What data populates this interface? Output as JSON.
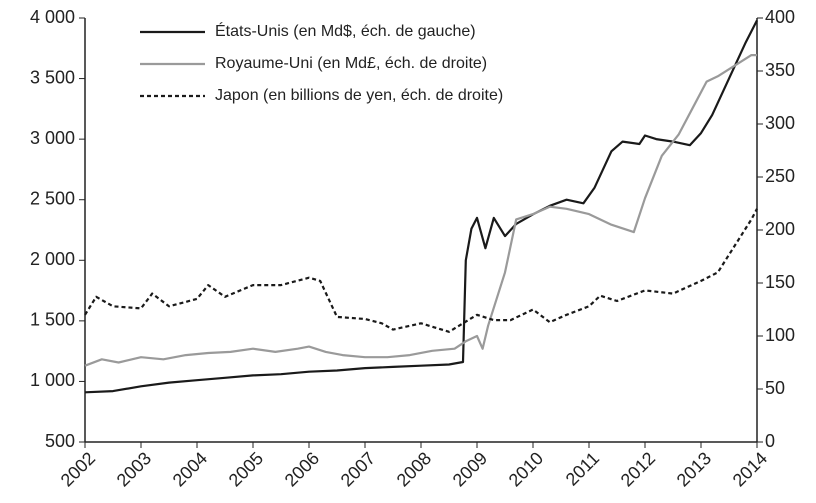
{
  "chart_data": {
    "type": "line",
    "xlim": [
      2002,
      2014
    ],
    "xticks": [
      2002,
      2003,
      2004,
      2005,
      2006,
      2007,
      2008,
      2009,
      2010,
      2011,
      2012,
      2013,
      2014
    ],
    "ylim": [
      500,
      4000
    ],
    "yticks": [
      500,
      {
        "value": 1000,
        "label": "1 000"
      },
      {
        "value": 1500,
        "label": "1 500"
      },
      {
        "value": 2000,
        "label": "2 000"
      },
      {
        "value": 2500,
        "label": "2 500"
      },
      {
        "value": 3000,
        "label": "3 000"
      },
      {
        "value": 3500,
        "label": "3 500"
      },
      {
        "value": 4000,
        "label": "4 000"
      }
    ],
    "y2lim": [
      0,
      400
    ],
    "y2ticks": [
      0,
      50,
      100,
      150,
      200,
      250,
      300,
      350,
      400
    ],
    "grid": false,
    "legend": "top-left",
    "series": [
      {
        "name": "États-Unis (en Md$, éch. de gauche)",
        "color": "#1a1a1a",
        "line_style": "solid",
        "axis": "y",
        "x": [
          2002,
          2002.5,
          2003,
          2003.5,
          2004,
          2004.5,
          2005,
          2005.5,
          2006,
          2006.5,
          2007,
          2007.5,
          2008,
          2008.5,
          2008.75,
          2008.8,
          2008.9,
          2009.0,
          2009.15,
          2009.3,
          2009.5,
          2009.7,
          2010,
          2010.3,
          2010.6,
          2010.9,
          2011.1,
          2011.4,
          2011.6,
          2011.9,
          2012.0,
          2012.2,
          2012.5,
          2012.8,
          2013,
          2013.2,
          2013.5,
          2013.8,
          2014
        ],
        "values": [
          910,
          920,
          960,
          990,
          1010,
          1030,
          1050,
          1060,
          1080,
          1090,
          1110,
          1120,
          1130,
          1140,
          1160,
          2000,
          2260,
          2350,
          2100,
          2350,
          2200,
          2300,
          2380,
          2450,
          2500,
          2470,
          2600,
          2900,
          2980,
          2960,
          3030,
          3000,
          2980,
          2950,
          3050,
          3200,
          3500,
          3800,
          3980
        ]
      },
      {
        "name": "Royaume-Uni (en Md£, éch. de droite)",
        "color": "#9a9a9a",
        "line_style": "solid",
        "axis": "y2",
        "x": [
          2002,
          2002.3,
          2002.6,
          2003,
          2003.4,
          2003.8,
          2004.2,
          2004.6,
          2005,
          2005.4,
          2005.8,
          2006,
          2006.3,
          2006.6,
          2007,
          2007.4,
          2007.8,
          2008.2,
          2008.6,
          2008.8,
          2009.0,
          2009.1,
          2009.2,
          2009.5,
          2009.7,
          2010,
          2010.3,
          2010.6,
          2011,
          2011.4,
          2011.8,
          2012,
          2012.3,
          2012.6,
          2012.9,
          2013.1,
          2013.3,
          2013.6,
          2013.9,
          2014
        ],
        "values": [
          72,
          78,
          75,
          80,
          78,
          82,
          84,
          85,
          88,
          85,
          88,
          90,
          85,
          82,
          80,
          80,
          82,
          86,
          88,
          95,
          100,
          88,
          110,
          160,
          210,
          215,
          222,
          220,
          215,
          205,
          198,
          230,
          270,
          290,
          320,
          340,
          345,
          355,
          365,
          365
        ]
      },
      {
        "name": "Japon (en billions de yen, éch. de droite)",
        "color": "#1a1a1a",
        "line_style": "dashed",
        "axis": "y2",
        "x": [
          2002,
          2002.2,
          2002.5,
          2003,
          2003.2,
          2003.5,
          2004,
          2004.2,
          2004.5,
          2005,
          2005.5,
          2006,
          2006.2,
          2006.5,
          2007,
          2007.3,
          2007.5,
          2008,
          2008.5,
          2009,
          2009.3,
          2009.6,
          2010,
          2010.3,
          2010.6,
          2011,
          2011.2,
          2011.5,
          2012,
          2012.5,
          2013,
          2013.3,
          2013.6,
          2013.9,
          2014
        ],
        "values": [
          120,
          137,
          128,
          126,
          140,
          128,
          135,
          148,
          137,
          148,
          148,
          155,
          152,
          118,
          116,
          112,
          106,
          112,
          104,
          120,
          115,
          115,
          125,
          113,
          120,
          128,
          138,
          133,
          143,
          140,
          152,
          160,
          185,
          210,
          220
        ]
      }
    ]
  }
}
